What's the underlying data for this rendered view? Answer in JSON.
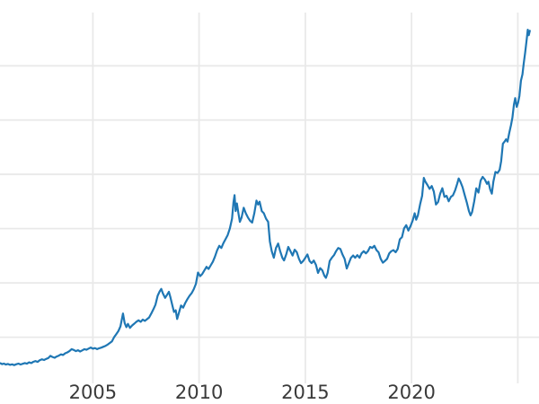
{
  "chart": {
    "line_color": "#1f77b4",
    "grid_color": "#e9e9e9",
    "tick_label_color": "#3a3a3a",
    "background_color": "#ffffff"
  },
  "chart_data": {
    "type": "line",
    "title": "",
    "xlabel": "",
    "ylabel": "",
    "grid": true,
    "legend": false,
    "y_axis_labels_visible": false,
    "xlim": [
      2000.63,
      2026.0
    ],
    "ylim": [
      83,
      3490
    ],
    "x_ticks": [
      {
        "x": 2005,
        "label": "2005"
      },
      {
        "x": 2010,
        "label": "2010"
      },
      {
        "x": 2015,
        "label": "2015"
      },
      {
        "x": 2020,
        "label": "2020"
      },
      {
        "x": 2025,
        "label": ""
      }
    ],
    "y_gridlines": [
      500,
      1000,
      1500,
      2000,
      2500,
      3000
    ],
    "series": [
      {
        "name": "",
        "points": [
          [
            2000.65,
            260
          ],
          [
            2000.73,
            252
          ],
          [
            2000.81,
            257
          ],
          [
            2000.9,
            248
          ],
          [
            2001.0,
            253
          ],
          [
            2001.1,
            245
          ],
          [
            2001.2,
            250
          ],
          [
            2001.3,
            243
          ],
          [
            2001.4,
            251
          ],
          [
            2001.5,
            257
          ],
          [
            2001.6,
            248
          ],
          [
            2001.7,
            255
          ],
          [
            2001.8,
            262
          ],
          [
            2001.9,
            256
          ],
          [
            2002.0,
            268
          ],
          [
            2002.1,
            262
          ],
          [
            2002.2,
            273
          ],
          [
            2002.3,
            280
          ],
          [
            2002.4,
            272
          ],
          [
            2002.5,
            287
          ],
          [
            2002.6,
            296
          ],
          [
            2002.7,
            290
          ],
          [
            2002.8,
            300
          ],
          [
            2002.9,
            307
          ],
          [
            2003.0,
            328
          ],
          [
            2003.1,
            318
          ],
          [
            2003.2,
            310
          ],
          [
            2003.3,
            322
          ],
          [
            2003.4,
            330
          ],
          [
            2003.5,
            342
          ],
          [
            2003.6,
            336
          ],
          [
            2003.7,
            352
          ],
          [
            2003.8,
            360
          ],
          [
            2003.9,
            372
          ],
          [
            2004.0,
            390
          ],
          [
            2004.1,
            382
          ],
          [
            2004.2,
            372
          ],
          [
            2004.3,
            380
          ],
          [
            2004.4,
            368
          ],
          [
            2004.5,
            378
          ],
          [
            2004.6,
            390
          ],
          [
            2004.7,
            384
          ],
          [
            2004.8,
            395
          ],
          [
            2004.9,
            405
          ],
          [
            2005.0,
            394
          ],
          [
            2005.1,
            400
          ],
          [
            2005.2,
            390
          ],
          [
            2005.3,
            398
          ],
          [
            2005.4,
            404
          ],
          [
            2005.5,
            412
          ],
          [
            2005.6,
            420
          ],
          [
            2005.7,
            432
          ],
          [
            2005.8,
            447
          ],
          [
            2005.9,
            462
          ],
          [
            2006.0,
            500
          ],
          [
            2006.1,
            528
          ],
          [
            2006.2,
            555
          ],
          [
            2006.3,
            600
          ],
          [
            2006.42,
            718
          ],
          [
            2006.5,
            630
          ],
          [
            2006.58,
            592
          ],
          [
            2006.65,
            622
          ],
          [
            2006.75,
            586
          ],
          [
            2006.85,
            608
          ],
          [
            2006.95,
            625
          ],
          [
            2007.05,
            642
          ],
          [
            2007.15,
            655
          ],
          [
            2007.25,
            641
          ],
          [
            2007.35,
            662
          ],
          [
            2007.45,
            650
          ],
          [
            2007.55,
            666
          ],
          [
            2007.65,
            682
          ],
          [
            2007.75,
            718
          ],
          [
            2007.85,
            758
          ],
          [
            2007.95,
            800
          ],
          [
            2008.05,
            882
          ],
          [
            2008.15,
            922
          ],
          [
            2008.22,
            945
          ],
          [
            2008.3,
            902
          ],
          [
            2008.4,
            862
          ],
          [
            2008.5,
            892
          ],
          [
            2008.58,
            918
          ],
          [
            2008.65,
            868
          ],
          [
            2008.75,
            788
          ],
          [
            2008.82,
            732
          ],
          [
            2008.9,
            748
          ],
          [
            2008.97,
            668
          ],
          [
            2009.05,
            722
          ],
          [
            2009.15,
            792
          ],
          [
            2009.25,
            772
          ],
          [
            2009.35,
            815
          ],
          [
            2009.45,
            850
          ],
          [
            2009.55,
            882
          ],
          [
            2009.65,
            905
          ],
          [
            2009.75,
            942
          ],
          [
            2009.85,
            992
          ],
          [
            2009.95,
            1095
          ],
          [
            2010.05,
            1062
          ],
          [
            2010.15,
            1082
          ],
          [
            2010.25,
            1115
          ],
          [
            2010.35,
            1148
          ],
          [
            2010.45,
            1128
          ],
          [
            2010.55,
            1162
          ],
          [
            2010.65,
            1196
          ],
          [
            2010.75,
            1242
          ],
          [
            2010.85,
            1300
          ],
          [
            2010.95,
            1342
          ],
          [
            2011.05,
            1322
          ],
          [
            2011.15,
            1368
          ],
          [
            2011.25,
            1405
          ],
          [
            2011.35,
            1442
          ],
          [
            2011.45,
            1502
          ],
          [
            2011.55,
            1592
          ],
          [
            2011.62,
            1742
          ],
          [
            2011.67,
            1808
          ],
          [
            2011.72,
            1662
          ],
          [
            2011.78,
            1732
          ],
          [
            2011.85,
            1642
          ],
          [
            2011.92,
            1562
          ],
          [
            2012.0,
            1602
          ],
          [
            2012.1,
            1692
          ],
          [
            2012.2,
            1642
          ],
          [
            2012.3,
            1602
          ],
          [
            2012.4,
            1572
          ],
          [
            2012.5,
            1556
          ],
          [
            2012.6,
            1642
          ],
          [
            2012.7,
            1758
          ],
          [
            2012.78,
            1722
          ],
          [
            2012.85,
            1748
          ],
          [
            2012.95,
            1662
          ],
          [
            2013.05,
            1642
          ],
          [
            2013.15,
            1592
          ],
          [
            2013.25,
            1562
          ],
          [
            2013.33,
            1382
          ],
          [
            2013.42,
            1292
          ],
          [
            2013.52,
            1232
          ],
          [
            2013.62,
            1322
          ],
          [
            2013.72,
            1362
          ],
          [
            2013.82,
            1292
          ],
          [
            2013.92,
            1232
          ],
          [
            2014.0,
            1207
          ],
          [
            2014.1,
            1262
          ],
          [
            2014.2,
            1332
          ],
          [
            2014.3,
            1292
          ],
          [
            2014.4,
            1252
          ],
          [
            2014.5,
            1306
          ],
          [
            2014.6,
            1282
          ],
          [
            2014.7,
            1222
          ],
          [
            2014.8,
            1182
          ],
          [
            2014.9,
            1202
          ],
          [
            2015.0,
            1232
          ],
          [
            2015.1,
            1262
          ],
          [
            2015.2,
            1202
          ],
          [
            2015.3,
            1182
          ],
          [
            2015.4,
            1206
          ],
          [
            2015.5,
            1166
          ],
          [
            2015.6,
            1092
          ],
          [
            2015.7,
            1136
          ],
          [
            2015.8,
            1116
          ],
          [
            2015.9,
            1066
          ],
          [
            2015.97,
            1046
          ],
          [
            2016.05,
            1092
          ],
          [
            2016.15,
            1202
          ],
          [
            2016.25,
            1232
          ],
          [
            2016.35,
            1256
          ],
          [
            2016.45,
            1292
          ],
          [
            2016.55,
            1322
          ],
          [
            2016.65,
            1312
          ],
          [
            2016.75,
            1262
          ],
          [
            2016.85,
            1222
          ],
          [
            2016.95,
            1132
          ],
          [
            2017.05,
            1182
          ],
          [
            2017.15,
            1232
          ],
          [
            2017.25,
            1252
          ],
          [
            2017.35,
            1232
          ],
          [
            2017.45,
            1256
          ],
          [
            2017.55,
            1232
          ],
          [
            2017.65,
            1272
          ],
          [
            2017.75,
            1292
          ],
          [
            2017.85,
            1272
          ],
          [
            2017.95,
            1292
          ],
          [
            2018.05,
            1332
          ],
          [
            2018.15,
            1322
          ],
          [
            2018.25,
            1342
          ],
          [
            2018.35,
            1302
          ],
          [
            2018.45,
            1282
          ],
          [
            2018.55,
            1222
          ],
          [
            2018.65,
            1186
          ],
          [
            2018.75,
            1202
          ],
          [
            2018.85,
            1222
          ],
          [
            2018.95,
            1272
          ],
          [
            2019.05,
            1292
          ],
          [
            2019.15,
            1302
          ],
          [
            2019.25,
            1282
          ],
          [
            2019.35,
            1312
          ],
          [
            2019.45,
            1402
          ],
          [
            2019.55,
            1422
          ],
          [
            2019.65,
            1502
          ],
          [
            2019.75,
            1532
          ],
          [
            2019.85,
            1482
          ],
          [
            2019.95,
            1522
          ],
          [
            2020.05,
            1572
          ],
          [
            2020.15,
            1642
          ],
          [
            2020.22,
            1582
          ],
          [
            2020.3,
            1622
          ],
          [
            2020.4,
            1722
          ],
          [
            2020.5,
            1802
          ],
          [
            2020.58,
            1968
          ],
          [
            2020.65,
            1932
          ],
          [
            2020.75,
            1902
          ],
          [
            2020.85,
            1866
          ],
          [
            2020.95,
            1892
          ],
          [
            2021.05,
            1842
          ],
          [
            2021.15,
            1722
          ],
          [
            2021.25,
            1746
          ],
          [
            2021.35,
            1822
          ],
          [
            2021.45,
            1872
          ],
          [
            2021.55,
            1792
          ],
          [
            2021.65,
            1802
          ],
          [
            2021.75,
            1752
          ],
          [
            2021.85,
            1792
          ],
          [
            2021.95,
            1806
          ],
          [
            2022.05,
            1852
          ],
          [
            2022.15,
            1912
          ],
          [
            2022.22,
            1962
          ],
          [
            2022.3,
            1932
          ],
          [
            2022.4,
            1882
          ],
          [
            2022.5,
            1812
          ],
          [
            2022.6,
            1742
          ],
          [
            2022.7,
            1662
          ],
          [
            2022.78,
            1622
          ],
          [
            2022.85,
            1652
          ],
          [
            2022.95,
            1752
          ],
          [
            2023.05,
            1872
          ],
          [
            2023.15,
            1832
          ],
          [
            2023.25,
            1942
          ],
          [
            2023.35,
            1977
          ],
          [
            2023.45,
            1952
          ],
          [
            2023.55,
            1912
          ],
          [
            2023.62,
            1932
          ],
          [
            2023.7,
            1862
          ],
          [
            2023.78,
            1822
          ],
          [
            2023.85,
            1932
          ],
          [
            2023.95,
            2022
          ],
          [
            2024.05,
            2012
          ],
          [
            2024.15,
            2042
          ],
          [
            2024.22,
            2122
          ],
          [
            2024.3,
            2282
          ],
          [
            2024.38,
            2302
          ],
          [
            2024.45,
            2322
          ],
          [
            2024.52,
            2302
          ],
          [
            2024.6,
            2382
          ],
          [
            2024.68,
            2452
          ],
          [
            2024.75,
            2522
          ],
          [
            2024.82,
            2642
          ],
          [
            2024.88,
            2702
          ],
          [
            2024.95,
            2622
          ],
          [
            2025.02,
            2662
          ],
          [
            2025.08,
            2722
          ],
          [
            2025.15,
            2862
          ],
          [
            2025.22,
            2922
          ],
          [
            2025.28,
            3022
          ],
          [
            2025.35,
            3122
          ],
          [
            2025.42,
            3242
          ],
          [
            2025.47,
            3332
          ],
          [
            2025.52,
            3282
          ],
          [
            2025.57,
            3322
          ]
        ]
      }
    ]
  }
}
